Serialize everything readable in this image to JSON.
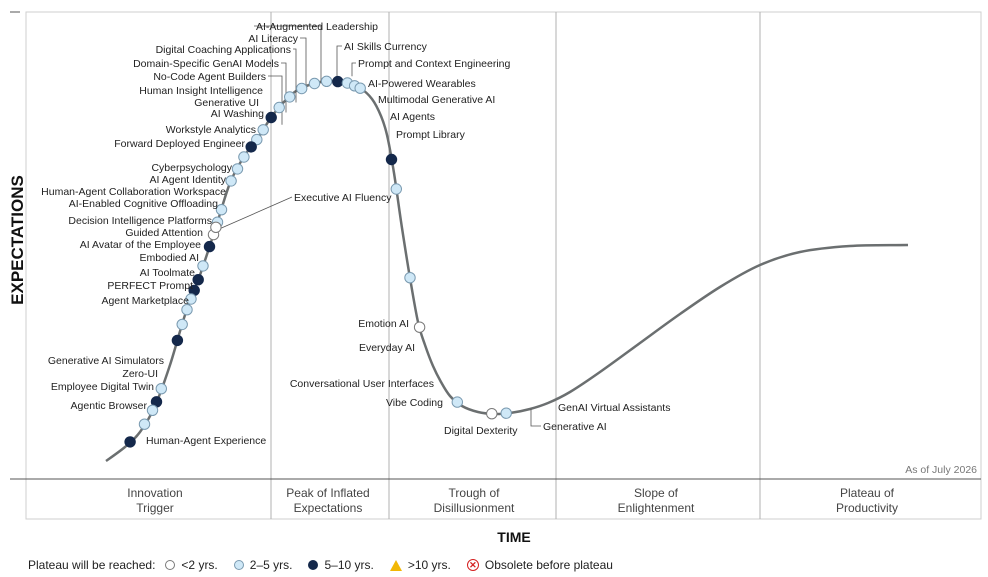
{
  "chart_data": {
    "type": "hype-cycle",
    "ylabel": "EXPECTATIONS",
    "xlabel": "TIME",
    "as_of": "As of July 2026",
    "phases": [
      {
        "line1": "Innovation",
        "line2": "Trigger"
      },
      {
        "line1": "Peak of Inflated",
        "line2": "Expectations"
      },
      {
        "line1": "Trough of",
        "line2": "Disillusionment"
      },
      {
        "line1": "Slope of",
        "line2": "Enlightenment"
      },
      {
        "line1": "Plateau of",
        "line2": "Productivity"
      }
    ],
    "legend": {
      "title": "Plateau will be reached:",
      "items": [
        {
          "key": "w",
          "label": "<2 yrs."
        },
        {
          "key": "l",
          "label": "2–5 yrs."
        },
        {
          "key": "d",
          "label": "5–10 yrs."
        },
        {
          "key": "t",
          "label": ">10 yrs."
        },
        {
          "key": "x",
          "label": "Obsolete before plateau"
        }
      ]
    },
    "colors": {
      "white": "#ffffff",
      "light": "#cfe8f7",
      "dark": "#14284b",
      "curve": "#6b6f70",
      "divider": "#b0b0b0"
    },
    "points": [
      {
        "name": "AI-Augmented Leadership",
        "t": 0.244,
        "plateau": "2-5"
      },
      {
        "name": "AI Literacy",
        "t": 0.229,
        "plateau": "2-5"
      },
      {
        "name": "Digital Coaching Applications",
        "t": 0.216,
        "plateau": "2-5"
      },
      {
        "name": "Domain-Specific GenAI Models",
        "t": 0.206,
        "plateau": "5-10"
      },
      {
        "name": "No-Code Agent Builders",
        "t": 0.196,
        "plateau": "2-5"
      },
      {
        "name": "Human Insight Intelligence",
        "t": 0.188,
        "plateau": "2-5"
      },
      {
        "name": "Generative UI",
        "t": 0.181,
        "plateau": "5-10"
      },
      {
        "name": "AI Washing",
        "t": 0.172,
        "plateau": "2-5"
      },
      {
        "name": "Workstyle Analytics",
        "t": 0.164,
        "plateau": "2-5"
      },
      {
        "name": "Forward Deployed Engineer",
        "t": 0.156,
        "plateau": "2-5"
      },
      {
        "name": "Cyberpsychology",
        "t": 0.144,
        "plateau": "2-5"
      },
      {
        "name": "AI Agent Identity",
        "t": 0.139,
        "plateau": "2-5"
      },
      {
        "name": "Human-Agent Collaboration Workspace",
        "t": 0.134,
        "plateau": "<2"
      },
      {
        "name": "AI-Enabled Cognitive Offloading",
        "t": 0.129,
        "plateau": "5-10"
      },
      {
        "name": "Decision Intelligence Platforms",
        "t": 0.121,
        "plateau": "2-5"
      },
      {
        "name": "Guided Attention",
        "t": 0.115,
        "plateau": "5-10"
      },
      {
        "name": "AI Avatar of the Employee",
        "t": 0.11,
        "plateau": "5-10"
      },
      {
        "name": "Embodied AI",
        "t": 0.106,
        "plateau": "2-5"
      },
      {
        "name": "AI Toolmate",
        "t": 0.101,
        "plateau": "2-5"
      },
      {
        "name": "PERFECT Prompt",
        "t": 0.095,
        "plateau": "2-5"
      },
      {
        "name": "Agent Marketplace",
        "t": 0.089,
        "plateau": "5-10"
      },
      {
        "name": "Generative AI Simulators",
        "t": 0.069,
        "plateau": "2-5"
      },
      {
        "name": "Zero-UI",
        "t": 0.063,
        "plateau": "5-10"
      },
      {
        "name": "Employee Digital Twin",
        "t": 0.058,
        "plateau": "2-5"
      },
      {
        "name": "Agentic Browser",
        "t": 0.048,
        "plateau": "2-5"
      },
      {
        "name": "Human-Agent Experience",
        "t": 0.03,
        "plateau": "5-10"
      },
      {
        "name": "AI Skills Currency",
        "t": 0.26,
        "plateau": "2-5"
      },
      {
        "name": "Prompt and Context Engineering",
        "t": 0.275,
        "plateau": "2-5"
      },
      {
        "name": "AI-Powered Wearables",
        "t": 0.289,
        "plateau": "5-10"
      },
      {
        "name": "Multimodal Generative AI",
        "t": 0.301,
        "plateau": "2-5"
      },
      {
        "name": "AI Agents",
        "t": 0.31,
        "plateau": "2-5"
      },
      {
        "name": "Prompt Library",
        "t": 0.317,
        "plateau": "2-5"
      },
      {
        "name": "Executive AI Fluency",
        "t": 0.137,
        "plateau": "<2"
      },
      {
        "name": "Emotion AI",
        "t": 0.356,
        "plateau": "5-10"
      },
      {
        "name": "Everyday AI",
        "t": 0.362,
        "plateau": "2-5"
      },
      {
        "name": "Conversational User Interfaces",
        "t": 0.379,
        "plateau": "2-5"
      },
      {
        "name": "Vibe Coding",
        "t": 0.391,
        "plateau": "<2"
      },
      {
        "name": "Digital Dexterity",
        "t": 0.438,
        "plateau": "2-5"
      },
      {
        "name": "Generative AI",
        "t": 0.481,
        "plateau": "<2"
      },
      {
        "name": "GenAI Virtual Assistants",
        "t": 0.499,
        "plateau": "2-5"
      }
    ]
  }
}
